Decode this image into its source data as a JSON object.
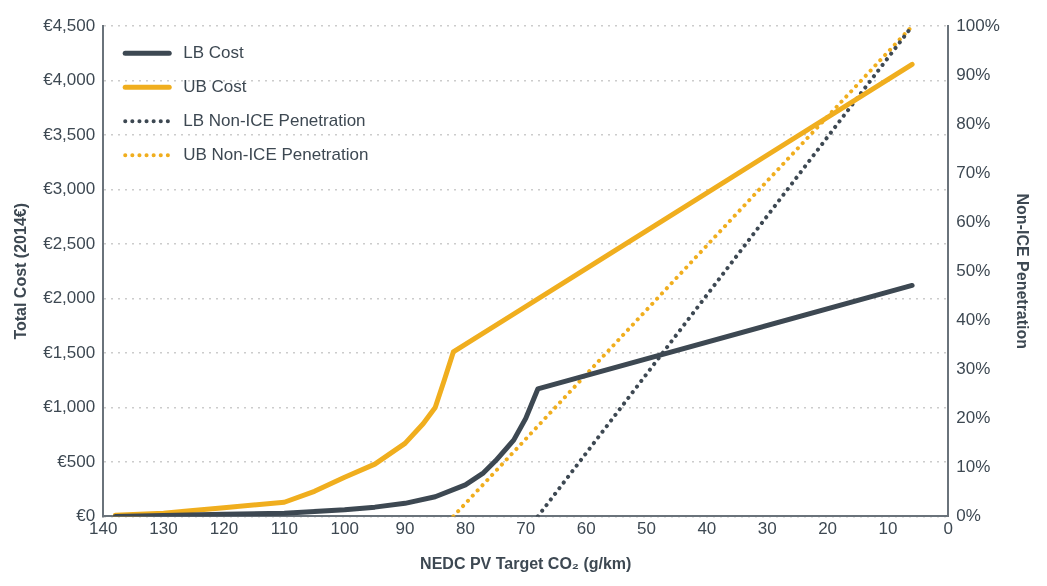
{
  "chart_data": {
    "type": "line",
    "xlabel": "NEDC PV Target CO₂ (g/km)",
    "ylabel": "Total Cost (2014€)",
    "y2label": "Non-ICE Penetration",
    "xlim": [
      140,
      0
    ],
    "xticks": [
      140,
      130,
      120,
      110,
      100,
      90,
      80,
      70,
      60,
      50,
      40,
      30,
      20,
      10,
      0
    ],
    "ylim": [
      0,
      4500
    ],
    "yticks": [
      {
        "value": 0,
        "label": "€0"
      },
      {
        "value": 500,
        "label": "€500"
      },
      {
        "value": 1000,
        "label": "€1,000"
      },
      {
        "value": 1500,
        "label": "€1,500"
      },
      {
        "value": 2000,
        "label": "€2,000"
      },
      {
        "value": 2500,
        "label": "€2,500"
      },
      {
        "value": 3000,
        "label": "€3,000"
      },
      {
        "value": 3500,
        "label": "€3,500"
      },
      {
        "value": 4000,
        "label": "€4,000"
      },
      {
        "value": 4500,
        "label": "€4,500"
      }
    ],
    "y2lim": [
      0,
      100
    ],
    "y2ticks": [
      {
        "value": 0,
        "label": "0%"
      },
      {
        "value": 10,
        "label": "10%"
      },
      {
        "value": 20,
        "label": "20%"
      },
      {
        "value": 30,
        "label": "30%"
      },
      {
        "value": 40,
        "label": "40%"
      },
      {
        "value": 50,
        "label": "50%"
      },
      {
        "value": 60,
        "label": "60%"
      },
      {
        "value": 70,
        "label": "70%"
      },
      {
        "value": 80,
        "label": "80%"
      },
      {
        "value": 90,
        "label": "90%"
      },
      {
        "value": 100,
        "label": "100%"
      }
    ],
    "grid": "y",
    "legend": "top left",
    "marker": "none",
    "series": [
      {
        "name": "LB Cost",
        "color": "#3d4852",
        "line_style": "solid",
        "x": [
          138,
          120,
          110,
          100,
          95,
          90,
          85,
          80,
          77,
          75,
          72,
          70,
          68,
          6
        ],
        "values": [
          0,
          20,
          30,
          60,
          85,
          120,
          180,
          290,
          400,
          510,
          700,
          900,
          1170,
          2120
        ]
      },
      {
        "name": "UB Cost",
        "color": "#f0ae1e",
        "line_style": "solid",
        "x": [
          138,
          130,
          120,
          110,
          105,
          100,
          95,
          90,
          87,
          85,
          83.5,
          82,
          6
        ],
        "values": [
          10,
          30,
          80,
          130,
          230,
          360,
          480,
          670,
          850,
          1000,
          1250,
          1510,
          4150
        ]
      },
      {
        "name": "LB Non-ICE Penetration",
        "color": "#3d4852",
        "line_style": "dotted",
        "axis": "y2",
        "x": [
          68,
          6
        ],
        "values": [
          0,
          100
        ]
      },
      {
        "name": "UB Non-ICE Penetration",
        "color": "#f0ae1e",
        "line_style": "dotted",
        "axis": "y2",
        "x": [
          82,
          6
        ],
        "values": [
          0,
          100
        ]
      }
    ]
  }
}
